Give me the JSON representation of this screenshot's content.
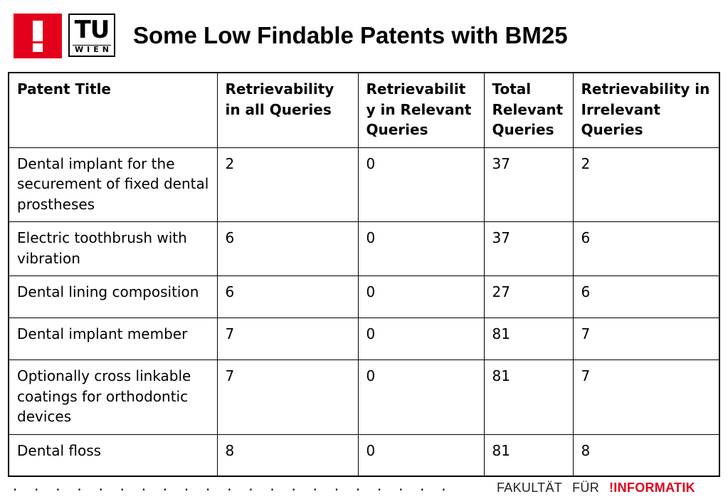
{
  "header": {
    "logo_tu": "TU",
    "logo_wien": "WIEN",
    "title": "Some Low Findable Patents with BM25"
  },
  "table": {
    "columns": [
      "Patent Title",
      "Retrievability in all Queries",
      "Retrievabilit y in Relevant Queries",
      "Total Relevant Queries",
      "Retrievability in Irrelevant Queries"
    ],
    "rows": [
      [
        "Dental implant for the securement of fixed dental prostheses",
        "2",
        "0",
        "37",
        "2"
      ],
      [
        "Electric toothbrush with vibration",
        "6",
        "0",
        "37",
        "6"
      ],
      [
        "Dental lining composition",
        "6",
        "0",
        "27",
        "6"
      ],
      [
        "Dental implant member",
        "7",
        "0",
        "81",
        "7"
      ],
      [
        "Optionally cross linkable coatings for orthodontic devices",
        "7",
        "0",
        "81",
        "7"
      ],
      [
        "Dental floss",
        "8",
        "0",
        "81",
        "8"
      ]
    ]
  },
  "footer": {
    "dots": ". . . . . . . . . . . . . . . . . . . . . . . . . . . . . . . . . . . . . . . . .",
    "fakultaet": "FAKULTÄT",
    "fuer": "FÜR",
    "informatik": "!INFORMATIK"
  },
  "colors": {
    "accent_red": "#e2001a",
    "text": "#000000",
    "background": "#ffffff"
  }
}
